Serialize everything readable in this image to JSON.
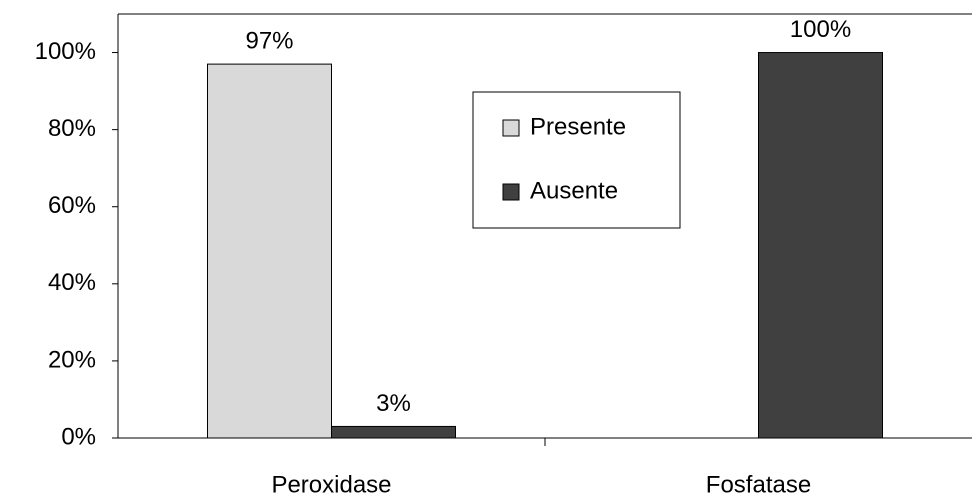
{
  "chart_data": {
    "type": "bar",
    "categories": [
      "Peroxidase",
      "Fosfatase"
    ],
    "series": [
      {
        "name": "Presente",
        "color": "#d9d9d9",
        "values": [
          97,
          0
        ],
        "value_labels": [
          "97%",
          null
        ]
      },
      {
        "name": "Ausente",
        "color": "#404040",
        "values": [
          3,
          100
        ],
        "value_labels": [
          "3%",
          "100%"
        ]
      }
    ],
    "ylim": [
      0,
      110
    ],
    "yticks": [
      {
        "value": 0,
        "label": "0%"
      },
      {
        "value": 20,
        "label": "20%"
      },
      {
        "value": 40,
        "label": "40%"
      },
      {
        "value": 60,
        "label": "60%"
      },
      {
        "value": 80,
        "label": "80%"
      },
      {
        "value": 100,
        "label": "100%"
      }
    ],
    "legend": "center"
  }
}
